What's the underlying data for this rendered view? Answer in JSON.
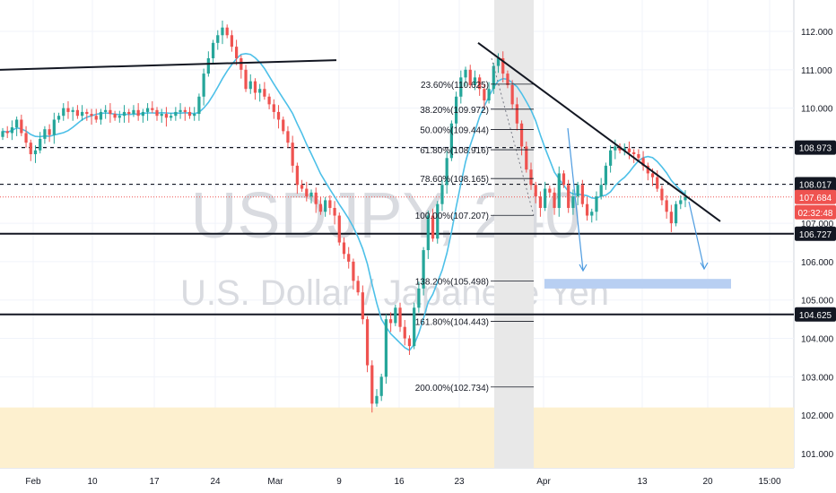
{
  "chart_data": {
    "type": "candlestick",
    "symbol": "USDJPY",
    "interval": "240",
    "description": "U.S. Dollar / Japanese Yen",
    "y_axis": {
      "ticks": [
        "112.000",
        "111.000",
        "110.000",
        "109.000",
        "108.000",
        "107.000",
        "106.000",
        "105.000",
        "104.000",
        "103.000",
        "102.000",
        "101.000"
      ],
      "range": [
        100.6,
        112.55
      ]
    },
    "x_axis": {
      "ticks": [
        "Feb",
        "10",
        "17",
        "24",
        "Mar",
        "9",
        "16",
        "23",
        "Apr",
        "13",
        "20",
        "15:00"
      ]
    },
    "price_tags": [
      {
        "value": "108.973",
        "style": "black"
      },
      {
        "value": "108.017",
        "style": "black"
      },
      {
        "value": "107.684",
        "style": "red"
      },
      {
        "value": "02:32:48",
        "style": "red"
      },
      {
        "value": "106.727",
        "style": "black"
      },
      {
        "value": "104.625",
        "style": "black"
      }
    ],
    "horizontal_lines": [
      {
        "price": 108.973,
        "style": "dashed"
      },
      {
        "price": 108.017,
        "style": "dashed"
      },
      {
        "price": 107.684,
        "style": "dotted-red"
      },
      {
        "price": 106.727,
        "style": "solid"
      },
      {
        "price": 104.625,
        "style": "solid"
      }
    ],
    "fibonacci_levels": [
      {
        "label": "23.60%(110.625)",
        "price": 110.625
      },
      {
        "label": "38.20%(109.972)",
        "price": 109.972
      },
      {
        "label": "50.00%(109.444)",
        "price": 109.444
      },
      {
        "label": "61.80%(108.916)",
        "price": 108.916
      },
      {
        "label": "78.60%(108.165)",
        "price": 108.165
      },
      {
        "label": "100.00%(107.207)",
        "price": 107.207
      },
      {
        "label": "138.20%(105.498)",
        "price": 105.498
      },
      {
        "label": "161.80%(104.443)",
        "price": 104.443
      },
      {
        "label": "200.00%(102.734)",
        "price": 102.734
      }
    ],
    "zones": [
      {
        "name": "demand-zone",
        "from": 100.6,
        "to": 102.2,
        "color": "#fdf0cf"
      },
      {
        "name": "target-zone",
        "from": 105.3,
        "to": 105.55,
        "color": "#b8cff2"
      },
      {
        "name": "highlight-band",
        "color": "#e8e8e8"
      }
    ],
    "trendlines": [
      {
        "name": "resistance-upper",
        "p1": [
          0,
          111.0
        ],
        "p2": [
          375,
          111.25
        ]
      },
      {
        "name": "resistance-descending",
        "p1": [
          533,
          111.7
        ],
        "p2": [
          803,
          107.05
        ]
      }
    ],
    "close_prices": [
      109.4,
      109.35,
      109.5,
      109.7,
      109.35,
      109.1,
      108.8,
      108.9,
      109.2,
      109.45,
      109.3,
      109.7,
      109.8,
      110.0,
      109.9,
      109.95,
      109.8,
      109.9,
      109.85,
      109.8,
      109.7,
      109.9,
      109.95,
      109.85,
      109.75,
      109.8,
      109.9,
      109.85,
      109.95,
      109.8,
      109.9,
      110.0,
      109.95,
      109.8,
      109.85,
      109.75,
      109.8,
      109.9,
      109.95,
      109.9,
      109.8,
      109.85,
      110.3,
      110.9,
      111.3,
      111.7,
      111.9,
      112.1,
      111.9,
      111.6,
      111.3,
      111.0,
      110.5,
      110.7,
      110.4,
      110.5,
      110.3,
      110.1,
      109.9,
      109.7,
      109.4,
      109.1,
      108.5,
      108.0,
      107.9,
      107.7,
      107.8,
      107.5,
      107.3,
      107.6,
      107.4,
      107.2,
      106.5,
      106.2,
      106.0,
      105.5,
      105.2,
      104.5,
      103.3,
      102.3,
      102.5,
      103.0,
      104.5,
      104.4,
      104.8,
      104.3,
      104.0,
      103.8,
      104.8,
      105.3,
      106.3,
      107.2,
      106.6,
      107.5,
      108.0,
      108.7,
      109.6,
      110.3,
      110.8,
      111.0,
      110.6,
      110.8,
      110.5,
      110.2,
      110.5,
      111.1,
      111.3,
      110.9,
      110.6,
      110.1,
      109.6,
      109.0,
      108.4,
      108.0,
      107.7,
      107.4,
      107.9,
      107.8,
      107.4,
      108.3,
      108.0,
      107.4,
      107.7,
      108.0,
      107.5,
      107.2,
      107.3,
      107.7,
      108.0,
      108.5,
      108.9,
      109.0,
      108.9,
      108.95,
      108.85,
      108.8,
      108.7,
      108.5,
      108.3,
      108.2,
      107.9,
      107.6,
      107.3,
      107.0,
      107.5,
      107.6,
      107.684
    ]
  }
}
